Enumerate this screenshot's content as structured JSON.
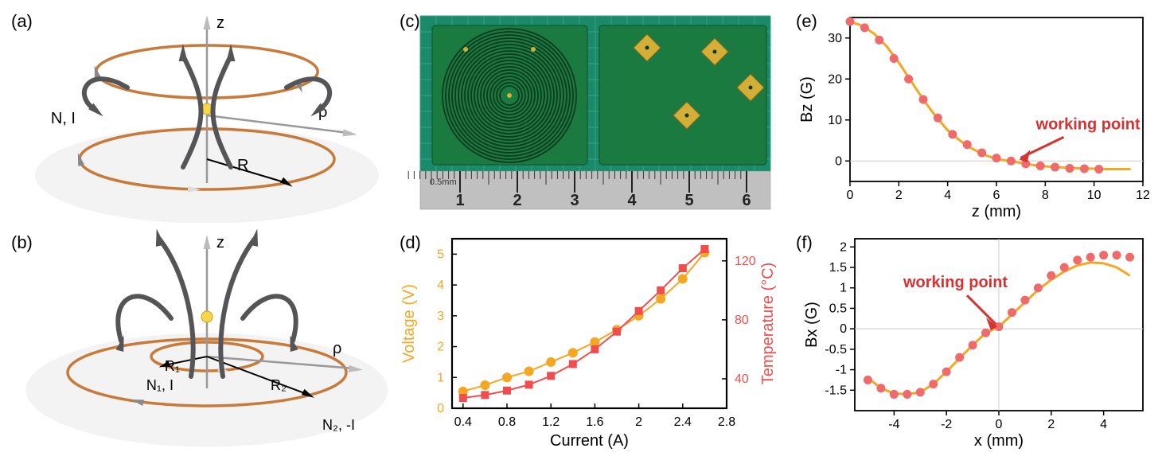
{
  "panels": {
    "a": {
      "label": "(a)",
      "z_label": "z",
      "rho_label": "ρ",
      "ni_label": "N, I",
      "r_label": "R"
    },
    "b": {
      "label": "(b)",
      "z_label": "z",
      "rho_label": "ρ",
      "n1_label": "N₁, I",
      "r1_label": "R₁",
      "r2_label": "R₂",
      "n2_label": "N₂, -I"
    },
    "c": {
      "label": "(c)",
      "ruler_unit": "0.5mm",
      "ruler_ticks": [
        "1",
        "2",
        "3",
        "4",
        "5",
        "6"
      ]
    },
    "d": {
      "label": "(d)",
      "xlabel": "Current (A)",
      "ylabel_left": "Voltage (V)",
      "ylabel_right": "Temperature (°C)",
      "xlim": [
        0.3,
        2.8
      ],
      "xticks": [
        0.4,
        0.8,
        1.2,
        1.6,
        2.0,
        2.4,
        2.8
      ],
      "ylim_left": [
        0,
        5.5
      ],
      "yticks_left": [
        0,
        1,
        2,
        3,
        4,
        5
      ],
      "ylim_right": [
        20,
        135
      ],
      "yticks_right": [
        40,
        80,
        120
      ],
      "voltage_color": "#f5a623",
      "temp_color": "#ef4e4e",
      "font_size_label": 20,
      "font_size_tick": 16,
      "voltage_data": [
        [
          0.4,
          0.55
        ],
        [
          0.6,
          0.75
        ],
        [
          0.8,
          1.0
        ],
        [
          1.0,
          1.2
        ],
        [
          1.2,
          1.5
        ],
        [
          1.4,
          1.8
        ],
        [
          1.6,
          2.15
        ],
        [
          1.8,
          2.55
        ],
        [
          2.0,
          3.0
        ],
        [
          2.2,
          3.55
        ],
        [
          2.4,
          4.2
        ],
        [
          2.6,
          5.05
        ]
      ],
      "temp_data": [
        [
          0.4,
          27
        ],
        [
          0.6,
          29
        ],
        [
          0.8,
          32
        ],
        [
          1.0,
          36
        ],
        [
          1.2,
          42
        ],
        [
          1.4,
          50
        ],
        [
          1.6,
          60
        ],
        [
          1.8,
          72
        ],
        [
          2.0,
          86
        ],
        [
          2.2,
          100
        ],
        [
          2.4,
          115
        ],
        [
          2.6,
          128
        ]
      ]
    },
    "e": {
      "label": "(e)",
      "xlabel": "z (mm)",
      "ylabel": "Bz (G)",
      "xlim": [
        0,
        12
      ],
      "xticks": [
        0,
        2,
        4,
        6,
        8,
        10,
        12
      ],
      "ylim": [
        -5,
        35
      ],
      "yticks": [
        0,
        10,
        20,
        30
      ],
      "line_color": "#f5a623",
      "point_color": "#ef6b6b",
      "annotation": "working point",
      "annotation_at": [
        6.8,
        0
      ],
      "data_line": [
        [
          0,
          34
        ],
        [
          0.5,
          33
        ],
        [
          1,
          31
        ],
        [
          1.5,
          28
        ],
        [
          2,
          24
        ],
        [
          2.5,
          19.5
        ],
        [
          3,
          15
        ],
        [
          3.5,
          11
        ],
        [
          4,
          7.5
        ],
        [
          4.5,
          5
        ],
        [
          5,
          3
        ],
        [
          5.5,
          1.5
        ],
        [
          6,
          0.5
        ],
        [
          6.5,
          0
        ],
        [
          7,
          -0.5
        ],
        [
          7.5,
          -1
        ],
        [
          8,
          -1.3
        ],
        [
          8.5,
          -1.5
        ],
        [
          9,
          -1.7
        ],
        [
          9.5,
          -1.8
        ],
        [
          10,
          -1.9
        ],
        [
          10.5,
          -2
        ],
        [
          11,
          -2
        ],
        [
          11.5,
          -2
        ]
      ],
      "data_points": [
        [
          0,
          34
        ],
        [
          0.6,
          32.5
        ],
        [
          1.2,
          29.5
        ],
        [
          1.8,
          25
        ],
        [
          2.4,
          20
        ],
        [
          3.0,
          15
        ],
        [
          3.6,
          10.5
        ],
        [
          4.2,
          6.5
        ],
        [
          4.8,
          4
        ],
        [
          5.4,
          2
        ],
        [
          6.0,
          0.7
        ],
        [
          6.6,
          0
        ],
        [
          7.2,
          -0.7
        ],
        [
          7.8,
          -1.2
        ],
        [
          8.4,
          -1.5
        ],
        [
          9.0,
          -1.8
        ],
        [
          9.6,
          -1.9
        ],
        [
          10.2,
          -2
        ]
      ]
    },
    "f": {
      "label": "(f)",
      "xlabel": "x (mm)",
      "ylabel": "Bx (G)",
      "xlim": [
        -5.5,
        5.5
      ],
      "xticks": [
        -4,
        -2,
        0,
        2,
        4
      ],
      "ylim": [
        -2,
        2.2
      ],
      "yticks": [
        -1.5,
        -1.0,
        -0.5,
        0,
        0.5,
        1.0,
        1.5,
        2.0
      ],
      "line_color": "#f5a623",
      "point_color": "#ef6b6b",
      "annotation": "working point",
      "annotation_at": [
        0,
        0
      ],
      "data_line": [
        [
          -5,
          -1.2
        ],
        [
          -4.5,
          -1.45
        ],
        [
          -4,
          -1.58
        ],
        [
          -3.5,
          -1.6
        ],
        [
          -3,
          -1.55
        ],
        [
          -2.5,
          -1.35
        ],
        [
          -2,
          -1.05
        ],
        [
          -1.5,
          -0.72
        ],
        [
          -1,
          -0.4
        ],
        [
          -0.5,
          -0.1
        ],
        [
          0,
          0.05
        ],
        [
          0.5,
          0.35
        ],
        [
          1,
          0.65
        ],
        [
          1.5,
          0.95
        ],
        [
          2,
          1.2
        ],
        [
          2.5,
          1.4
        ],
        [
          3,
          1.55
        ],
        [
          3.5,
          1.62
        ],
        [
          4,
          1.6
        ],
        [
          4.5,
          1.5
        ],
        [
          5,
          1.3
        ]
      ],
      "data_points": [
        [
          -5,
          -1.25
        ],
        [
          -4.5,
          -1.45
        ],
        [
          -4,
          -1.6
        ],
        [
          -3.5,
          -1.6
        ],
        [
          -3,
          -1.55
        ],
        [
          -2.5,
          -1.35
        ],
        [
          -2,
          -1.05
        ],
        [
          -1.5,
          -0.7
        ],
        [
          -1,
          -0.4
        ],
        [
          -0.5,
          -0.1
        ],
        [
          0,
          0.05
        ],
        [
          0.5,
          0.4
        ],
        [
          1,
          0.7
        ],
        [
          1.5,
          1.0
        ],
        [
          2,
          1.3
        ],
        [
          2.5,
          1.5
        ],
        [
          3,
          1.68
        ],
        [
          3.5,
          1.75
        ],
        [
          4,
          1.8
        ],
        [
          4.5,
          1.8
        ],
        [
          5,
          1.75
        ]
      ]
    }
  },
  "colors": {
    "coil": "#c77a3a",
    "fieldline": "#555558",
    "background": "#ffffff",
    "atom": "#f8d648"
  }
}
